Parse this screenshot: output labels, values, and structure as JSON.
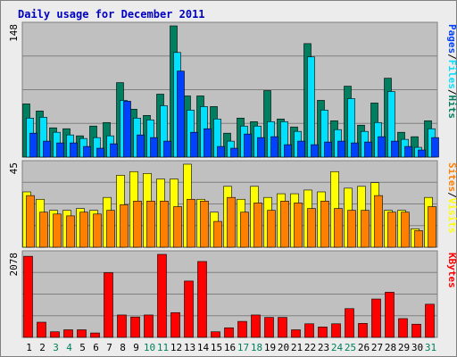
{
  "colors": {
    "background": "#ececec",
    "border": "#808080",
    "plot_bg": "#c0c0c0",
    "grid": "#808080",
    "title": "#0000c0",
    "hits": "#007f60",
    "files": "#00e0ff",
    "pages": "#0040ff",
    "visits": "#ffff00",
    "sites": "#ff8000",
    "kbytes": "#ff0000",
    "weekend": "#00805c",
    "weekday": "#000000"
  },
  "chart_data": {
    "type": "bar",
    "title": "Daily usage for December 2011",
    "categories": [
      "1",
      "2",
      "3",
      "4",
      "5",
      "6",
      "7",
      "8",
      "9",
      "10",
      "11",
      "12",
      "13",
      "14",
      "15",
      "16",
      "17",
      "18",
      "19",
      "20",
      "21",
      "22",
      "23",
      "24",
      "25",
      "26",
      "27",
      "28",
      "29",
      "30",
      "31"
    ],
    "weekend_days": [
      "3",
      "4",
      "10",
      "11",
      "17",
      "18",
      "24",
      "25",
      "31"
    ],
    "panels": [
      {
        "name": "hits-files-pages",
        "max_label": "148",
        "ymax": 148,
        "legend": [
          {
            "text": "Hits",
            "color": "#007f60"
          },
          {
            "text": "/",
            "color": "#000000"
          },
          {
            "text": "Files",
            "color": "#00e0ff"
          },
          {
            "text": "/",
            "color": "#000000"
          },
          {
            "text": "Pages",
            "color": "#0040ff"
          }
        ],
        "series": [
          {
            "name": "Hits",
            "color": "#007f60",
            "values": [
              60,
              52,
              33,
              32,
              24,
              35,
              39,
              84,
              54,
              47,
              71,
              148,
              69,
              69,
              57,
              27,
              44,
              40,
              75,
              43,
              34,
              128,
              64,
              41,
              80,
              36,
              61,
              89,
              28,
              23,
              41
            ]
          },
          {
            "name": "Files",
            "color": "#00e0ff",
            "values": [
              44,
              45,
              28,
              25,
              21,
              22,
              24,
              64,
              44,
              42,
              58,
              118,
              53,
              57,
              43,
              18,
              35,
              35,
              40,
              40,
              29,
              113,
              53,
              31,
              66,
              29,
              39,
              74,
              20,
              11,
              32
            ]
          },
          {
            "name": "Pages",
            "color": "#0040ff",
            "values": [
              27,
              18,
              16,
              16,
              12,
              10,
              15,
              63,
              25,
              22,
              18,
              97,
              28,
              32,
              12,
              10,
              26,
              22,
              23,
              14,
              18,
              14,
              17,
              18,
              16,
              17,
              23,
              18,
              12,
              8,
              22
            ]
          }
        ]
      },
      {
        "name": "visits-sites",
        "max_label": "45",
        "ymax": 45,
        "legend": [
          {
            "text": "Visits",
            "color": "#ffff00"
          },
          {
            "text": "/",
            "color": "#000000"
          },
          {
            "text": "Sites",
            "color": "#ff8000"
          }
        ],
        "series": [
          {
            "name": "Visits",
            "color": "#ffff00",
            "values": [
              30,
              26,
              20,
              20,
              21,
              20,
              27,
              39,
              41,
              40,
              37,
              37,
              45,
              26,
              19,
              33,
              26,
              33,
              27,
              29,
              29,
              31,
              30,
              41,
              32,
              33,
              35,
              20,
              20,
              10,
              27
            ]
          },
          {
            "name": "Sites",
            "color": "#ff8000",
            "values": [
              28,
              19,
              18,
              17,
              19,
              18,
              20,
              23,
              25,
              25,
              25,
              22,
              26,
              25,
              14,
              27,
              19,
              24,
              20,
              25,
              24,
              21,
              25,
              21,
              20,
              20,
              28,
              19,
              19,
              9,
              22
            ]
          }
        ]
      },
      {
        "name": "kbytes",
        "max_label": "2078",
        "ymax": 2078,
        "legend": [
          {
            "text": "KBytes",
            "color": "#ff0000"
          }
        ],
        "series": [
          {
            "name": "KBytes",
            "color": "#ff0000",
            "values": [
              2030,
              380,
              140,
              190,
              190,
              110,
              1620,
              560,
              510,
              560,
              2078,
              620,
              1410,
              1900,
              140,
              240,
              400,
              560,
              500,
              500,
              190,
              340,
              260,
              340,
              720,
              350,
              960,
              1130,
              470,
              330,
              830
            ]
          }
        ]
      }
    ]
  }
}
